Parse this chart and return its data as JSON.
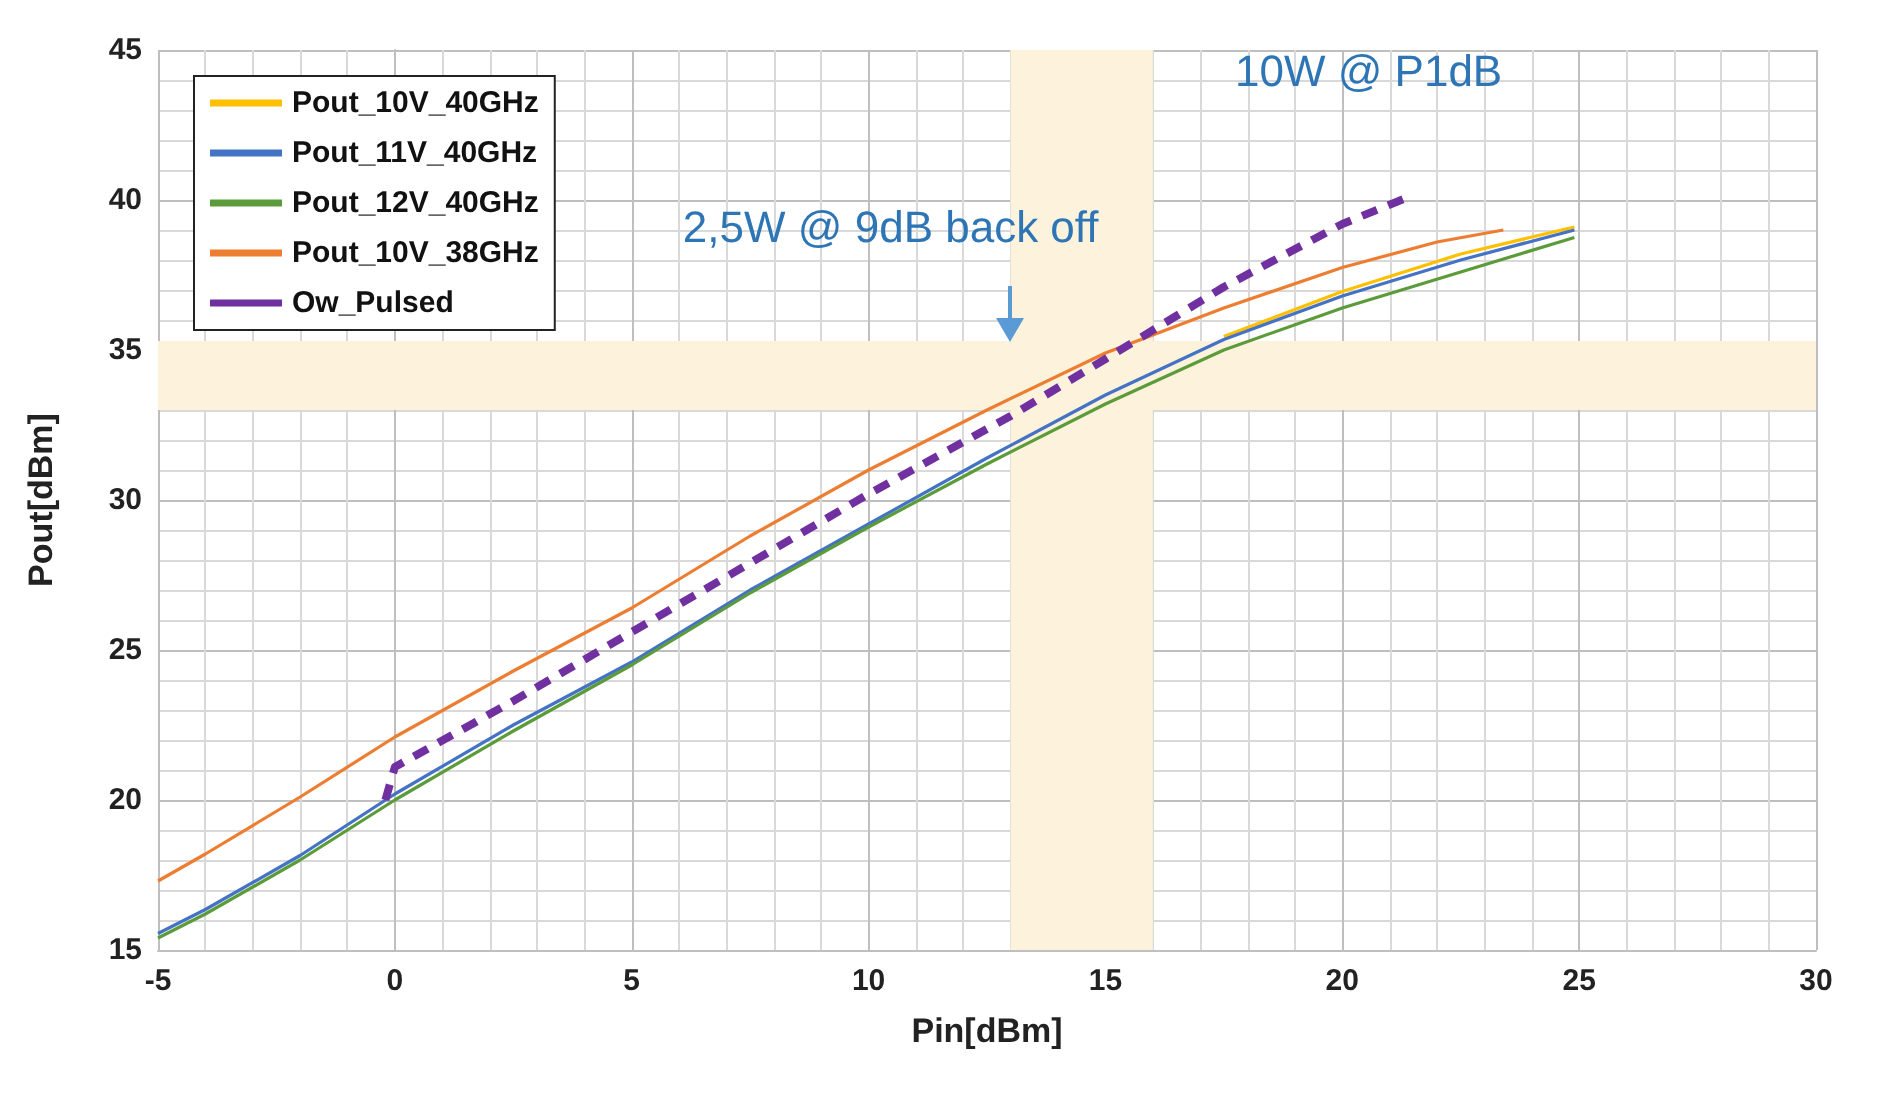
{
  "chart_data": {
    "type": "line",
    "xlabel": "Pin[dBm]",
    "ylabel": "Pout[dBm]",
    "xlim": [
      -5,
      30
    ],
    "xticks": [
      -5,
      0,
      5,
      10,
      15,
      20,
      25,
      30
    ],
    "ylim": [
      15,
      45
    ],
    "yticks": [
      15,
      20,
      25,
      30,
      35,
      40,
      45
    ],
    "grid": true,
    "legend": "top left",
    "marker": "none",
    "series": [
      {
        "name": "Pout_10V_40GHz",
        "color": "#ffc000",
        "x": [
          17.5,
          20,
          22.5,
          24.9
        ],
        "values": [
          35.45,
          36.95,
          38.2,
          39.1
        ]
      },
      {
        "name": "Pout_11V_40GHz",
        "color": "#4472c4",
        "x": [
          -5,
          -4,
          -2,
          0,
          2.5,
          5,
          7.5,
          10,
          12.5,
          15,
          17.5,
          20,
          22.5,
          24.9
        ],
        "values": [
          15.55,
          16.35,
          18.15,
          20.2,
          22.5,
          24.6,
          27.0,
          29.2,
          31.4,
          33.5,
          35.35,
          36.8,
          38.0,
          39.0
        ]
      },
      {
        "name": "Pout_12V_40GHz",
        "color": "#5b9b3a",
        "x": [
          -5,
          -4,
          -2,
          0,
          2.5,
          5,
          7.5,
          10,
          12.5,
          15,
          17.5,
          20,
          22.5,
          24.9
        ],
        "values": [
          15.4,
          16.2,
          18.0,
          20.0,
          22.3,
          24.5,
          26.9,
          29.1,
          31.2,
          33.2,
          35.0,
          36.4,
          37.6,
          38.75
        ]
      },
      {
        "name": "Pout_10V_38GHz",
        "color": "#ed7d31",
        "x": [
          -5,
          -4,
          -2,
          0,
          2.5,
          5,
          7.5,
          10,
          12.5,
          15,
          17.5,
          20,
          22,
          23.4
        ],
        "values": [
          17.3,
          18.2,
          20.1,
          22.1,
          24.3,
          26.4,
          28.8,
          31.0,
          33.0,
          34.9,
          36.4,
          37.75,
          38.6,
          39.0
        ]
      },
      {
        "name": "Ow_Pulsed",
        "color": "#7030a0",
        "line_style": "dashed",
        "x": [
          -0.2,
          0,
          2.5,
          5,
          7.5,
          10,
          13,
          15,
          17.5,
          20,
          21.4
        ],
        "values": [
          20.0,
          21.1,
          23.3,
          25.6,
          27.9,
          30.2,
          32.8,
          34.7,
          37.1,
          39.2,
          40.1
        ]
      }
    ],
    "bands": [
      {
        "axis": "x",
        "from": 13,
        "to": 16,
        "color": "#fdf3dc"
      },
      {
        "axis": "y",
        "from": 33,
        "to": 35.3,
        "color": "#fdf3dc"
      }
    ],
    "annotations": [
      {
        "text": "2,5W @ 9dB back off",
        "x": 13,
        "y": 35.3
      },
      {
        "text": "10W @ P1dB",
        "x": 21.4,
        "y": 40.1
      }
    ]
  }
}
